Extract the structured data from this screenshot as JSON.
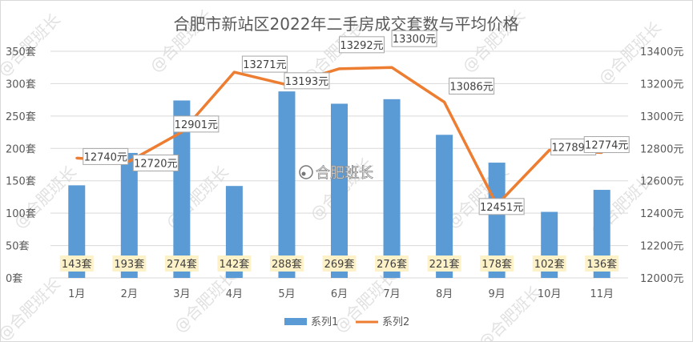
{
  "chart_data": {
    "type": "bar+line",
    "title": "合肥市新站区2022年二手房成交套数与平均价格",
    "categories": [
      "1月",
      "2月",
      "3月",
      "4月",
      "5月",
      "6月",
      "7月",
      "8月",
      "9月",
      "10月",
      "11月"
    ],
    "series": [
      {
        "name": "系列1",
        "type": "bar",
        "axis": "left",
        "values": [
          143,
          193,
          274,
          142,
          288,
          269,
          276,
          221,
          178,
          102,
          136
        ],
        "labels": [
          "143套",
          "193套",
          "274套",
          "142套",
          "288套",
          "269套",
          "276套",
          "221套",
          "178套",
          "102套",
          "136套"
        ],
        "color": "#5b9bd5"
      },
      {
        "name": "系列2",
        "type": "line",
        "axis": "right",
        "values": [
          12740,
          12720,
          12901,
          13271,
          13193,
          13292,
          13300,
          13086,
          12451,
          12789,
          12774
        ],
        "labels": [
          "12740元",
          "12720元",
          "12901元",
          "13271元",
          "13193元",
          "13292元",
          "13300元",
          "13086元",
          "12451元",
          "12789元",
          "12774元"
        ],
        "color": "#ed7d31"
      }
    ],
    "y_left": {
      "min": 0,
      "max": 350,
      "step": 50,
      "ticks": [
        "0套",
        "50套",
        "100套",
        "150套",
        "200套",
        "250套",
        "300套",
        "350套"
      ]
    },
    "y_right": {
      "min": 12000,
      "max": 13400,
      "step": 200,
      "ticks": [
        "12000元",
        "12200元",
        "12400元",
        "12600元",
        "12800元",
        "13000元",
        "13200元",
        "13400元"
      ]
    },
    "grid": true,
    "legend_position": "bottom",
    "watermark_text": "@合肥班长",
    "center_watermark": "合肥班长"
  }
}
